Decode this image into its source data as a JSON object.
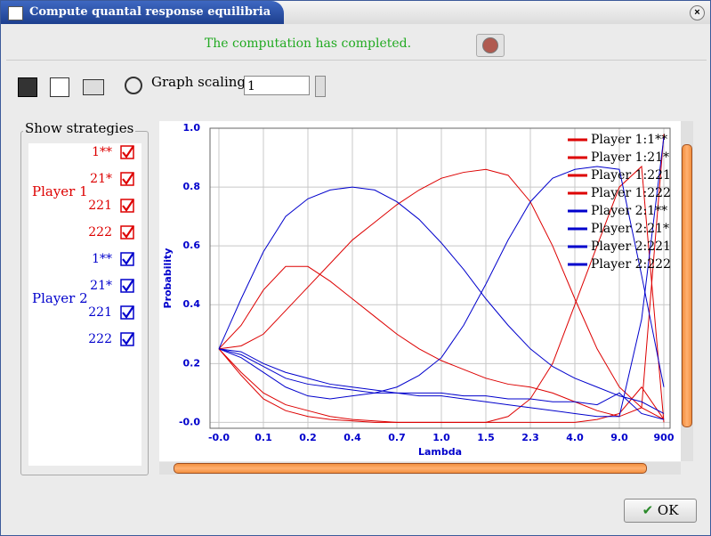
{
  "window": {
    "title": "Compute quantal response equilibria"
  },
  "status": "The computation has completed.",
  "toolbar": {
    "scaling_label": "Graph scaling:",
    "scaling_value": "1"
  },
  "strategies": {
    "title": "Show strategies",
    "players": [
      {
        "name": "Player 1",
        "color": "#dd0000",
        "strategies": [
          "1**",
          "21*",
          "221",
          "222"
        ]
      },
      {
        "name": "Player 2",
        "color": "#0000cc",
        "strategies": [
          "1**",
          "21*",
          "221",
          "222"
        ]
      }
    ]
  },
  "ok_button": "OK",
  "chart_data": {
    "type": "line",
    "xlabel": "Lambda",
    "ylabel": "Probability",
    "x": [
      0,
      0.5,
      1,
      1.5,
      2,
      2.5,
      3,
      3.5,
      4,
      4.5,
      5,
      5.5,
      6,
      6.5,
      7,
      7.5,
      8,
      8.5,
      9,
      9.5,
      10
    ],
    "xlim": [
      -0.2,
      10.14
    ],
    "ylim": [
      -0.02,
      1.0
    ],
    "xticks": [
      {
        "value": 0,
        "label": "-0.0"
      },
      {
        "value": 1,
        "label": "0.1"
      },
      {
        "value": 2,
        "label": "0.2"
      },
      {
        "value": 3,
        "label": "0.4"
      },
      {
        "value": 4,
        "label": "0.7"
      },
      {
        "value": 5,
        "label": "1.0"
      },
      {
        "value": 6,
        "label": "1.5"
      },
      {
        "value": 7,
        "label": "2.3"
      },
      {
        "value": 8,
        "label": "4.0"
      },
      {
        "value": 9,
        "label": "9.0"
      },
      {
        "value": 10,
        "label": "900"
      }
    ],
    "yticks": [
      {
        "value": 0,
        "label": "-0.0"
      },
      0.2,
      0.4,
      0.6,
      0.8,
      {
        "value": 1,
        "label": "1.0"
      }
    ],
    "grid": true,
    "series": [
      {
        "name": "Player 1:1**",
        "color": "#dd0000",
        "values": [
          0.25,
          0.33,
          0.45,
          0.53,
          0.53,
          0.48,
          0.42,
          0.36,
          0.3,
          0.25,
          0.21,
          0.18,
          0.15,
          0.13,
          0.12,
          0.1,
          0.07,
          0.04,
          0.02,
          0.05,
          0.98
        ]
      },
      {
        "name": "Player 1:21*",
        "color": "#dd0000",
        "values": [
          0.25,
          0.26,
          0.3,
          0.38,
          0.46,
          0.54,
          0.62,
          0.68,
          0.74,
          0.79,
          0.83,
          0.85,
          0.86,
          0.84,
          0.75,
          0.6,
          0.42,
          0.25,
          0.12,
          0.05,
          0.01
        ]
      },
      {
        "name": "Player 1:221",
        "color": "#dd0000",
        "values": [
          0.25,
          0.17,
          0.1,
          0.06,
          0.04,
          0.02,
          0.01,
          0.005,
          0,
          0,
          0,
          0,
          0,
          0.02,
          0.08,
          0.2,
          0.4,
          0.6,
          0.8,
          0.87,
          0.0
        ]
      },
      {
        "name": "Player 1:222",
        "color": "#dd0000",
        "values": [
          0.25,
          0.16,
          0.08,
          0.04,
          0.02,
          0.01,
          0.005,
          0,
          0,
          0,
          0,
          0,
          0,
          0,
          0,
          0,
          0,
          0.01,
          0.03,
          0.12,
          0.01
        ]
      },
      {
        "name": "Player 2:1**",
        "color": "#0000cc",
        "values": [
          0.25,
          0.42,
          0.58,
          0.7,
          0.76,
          0.79,
          0.8,
          0.79,
          0.75,
          0.69,
          0.61,
          0.52,
          0.42,
          0.33,
          0.25,
          0.19,
          0.15,
          0.12,
          0.09,
          0.07,
          0.03
        ]
      },
      {
        "name": "Player 2:21*",
        "color": "#0000cc",
        "values": [
          0.25,
          0.22,
          0.17,
          0.12,
          0.09,
          0.08,
          0.09,
          0.1,
          0.12,
          0.16,
          0.22,
          0.33,
          0.47,
          0.62,
          0.75,
          0.83,
          0.86,
          0.87,
          0.86,
          0.5,
          0.12
        ]
      },
      {
        "name": "Player 2:221",
        "color": "#0000cc",
        "values": [
          0.25,
          0.24,
          0.2,
          0.17,
          0.15,
          0.13,
          0.12,
          0.11,
          0.1,
          0.09,
          0.09,
          0.08,
          0.07,
          0.06,
          0.05,
          0.04,
          0.03,
          0.02,
          0.02,
          0.35,
          0.97
        ]
      },
      {
        "name": "Player 2:222",
        "color": "#0000cc",
        "values": [
          0.25,
          0.23,
          0.19,
          0.15,
          0.13,
          0.12,
          0.11,
          0.1,
          0.1,
          0.1,
          0.1,
          0.09,
          0.09,
          0.08,
          0.08,
          0.07,
          0.07,
          0.06,
          0.1,
          0.03,
          0.01
        ]
      }
    ]
  }
}
